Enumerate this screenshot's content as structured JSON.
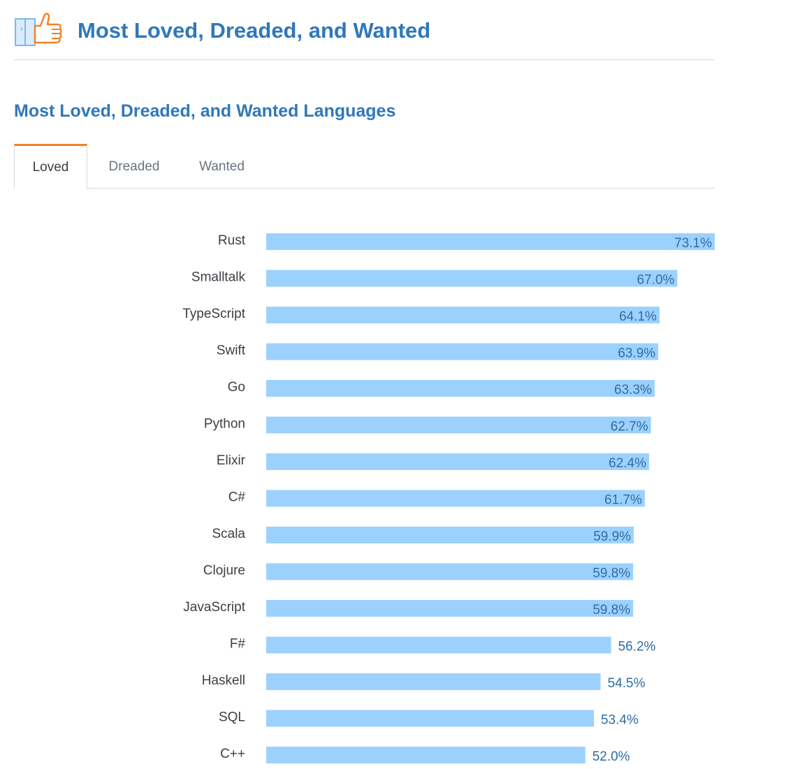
{
  "header": {
    "title": "Most Loved, Dreaded, and Wanted",
    "icon": "thumbs-up-icon"
  },
  "section": {
    "title": "Most Loved, Dreaded, and Wanted Languages"
  },
  "tabs": [
    {
      "label": "Loved",
      "active": true
    },
    {
      "label": "Dreaded",
      "active": false
    },
    {
      "label": "Wanted",
      "active": false
    }
  ],
  "colors": {
    "accent": "#2f78b9",
    "bar": "#9cd1fe",
    "value_label": "#2e6da4",
    "tab_active_border": "#f48024",
    "icon_orange": "#f48024"
  },
  "chart_data": {
    "type": "bar",
    "orientation": "horizontal",
    "unit": "%",
    "categories": [
      "Rust",
      "Smalltalk",
      "TypeScript",
      "Swift",
      "Go",
      "Python",
      "Elixir",
      "C#",
      "Scala",
      "Clojure",
      "JavaScript",
      "F#",
      "Haskell",
      "SQL",
      "C++"
    ],
    "values": [
      73.1,
      67.0,
      64.1,
      63.9,
      63.3,
      62.7,
      62.4,
      61.7,
      59.9,
      59.8,
      59.8,
      56.2,
      54.5,
      53.4,
      52.0
    ],
    "value_labels": [
      "73.1%",
      "67.0%",
      "64.1%",
      "63.9%",
      "63.3%",
      "62.7%",
      "62.4%",
      "61.7%",
      "59.9%",
      "59.8%",
      "59.8%",
      "56.2%",
      "54.5%",
      "53.4%",
      "52.0%"
    ],
    "grid": false,
    "legend": "none"
  }
}
